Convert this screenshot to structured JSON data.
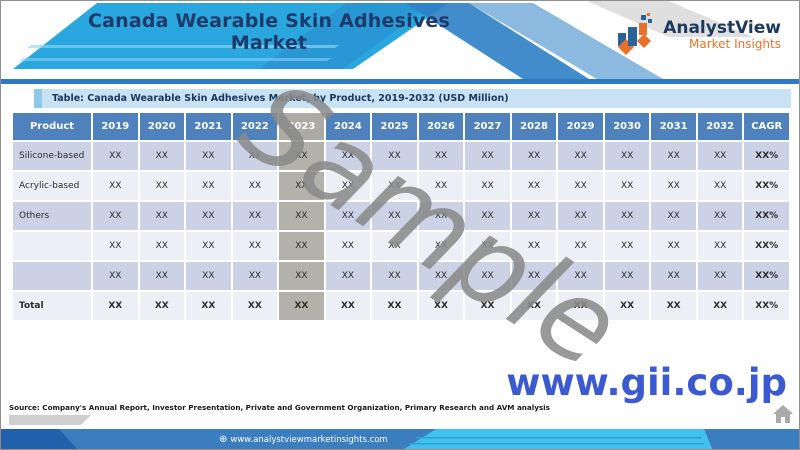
{
  "header": {
    "title": "Canada Wearable Skin Adhesives Market",
    "logo_name": "AnalystView",
    "logo_tagline": "Market Insights"
  },
  "table": {
    "caption": "Table: Canada Wearable Skin Adhesives Market, by Product, 2019-2032 (USD Million)",
    "columns": [
      "Product",
      "2019",
      "2020",
      "2021",
      "2022",
      "2023",
      "2024",
      "2025",
      "2026",
      "2027",
      "2028",
      "2029",
      "2030",
      "2031",
      "2032",
      "CAGR"
    ],
    "highlight_column": "2023",
    "rows": [
      {
        "label": "Silicone-based",
        "values": [
          "XX",
          "XX",
          "XX",
          "XX",
          "XX",
          "XX",
          "XX",
          "XX",
          "XX",
          "XX",
          "XX",
          "XX",
          "XX",
          "XX"
        ],
        "cagr": "XX%",
        "bold": false
      },
      {
        "label": "Acrylic-based",
        "values": [
          "XX",
          "XX",
          "XX",
          "XX",
          "XX",
          "XX",
          "XX",
          "XX",
          "XX",
          "XX",
          "XX",
          "XX",
          "XX",
          "XX"
        ],
        "cagr": "XX%",
        "bold": false
      },
      {
        "label": "Others",
        "values": [
          "XX",
          "XX",
          "XX",
          "XX",
          "XX",
          "XX",
          "XX",
          "XX",
          "XX",
          "XX",
          "XX",
          "XX",
          "XX",
          "XX"
        ],
        "cagr": "XX%",
        "bold": false
      },
      {
        "label": "",
        "values": [
          "XX",
          "XX",
          "XX",
          "XX",
          "XX",
          "XX",
          "XX",
          "XX",
          "XX",
          "XX",
          "XX",
          "XX",
          "XX",
          "XX"
        ],
        "cagr": "XX%",
        "bold": false
      },
      {
        "label": "",
        "values": [
          "XX",
          "XX",
          "XX",
          "XX",
          "XX",
          "XX",
          "XX",
          "XX",
          "XX",
          "XX",
          "XX",
          "XX",
          "XX",
          "XX"
        ],
        "cagr": "XX%",
        "bold": false
      },
      {
        "label": "Total",
        "values": [
          "XX",
          "XX",
          "XX",
          "XX",
          "XX",
          "XX",
          "XX",
          "XX",
          "XX",
          "XX",
          "XX",
          "XX",
          "XX",
          "XX"
        ],
        "cagr": "XX%",
        "bold": true
      }
    ]
  },
  "watermarks": {
    "sample": "Sample",
    "site": "www.gii.co.jp"
  },
  "source": "Source: Company's Annual Report, Investor Presentation, Private and Government Organization, Primary Research and AVM analysis",
  "footer": {
    "url": "www.analystviewmarketinsights.com",
    "globe_icon": "⊕"
  },
  "colors": {
    "header_blue": "#4f81bd",
    "caption_bg": "#c8e2f4",
    "row_odd": "#cbd2e6",
    "row_even": "#eceff6",
    "highlight_gray": "#b2b1aa",
    "accent_cyan": "#2aa7df",
    "watermark_gray": "#8a8a8a",
    "gii_blue": "#3b5ad1",
    "footer_blue": "#3b7ec0",
    "footer_cyan": "#3fc2ee"
  }
}
